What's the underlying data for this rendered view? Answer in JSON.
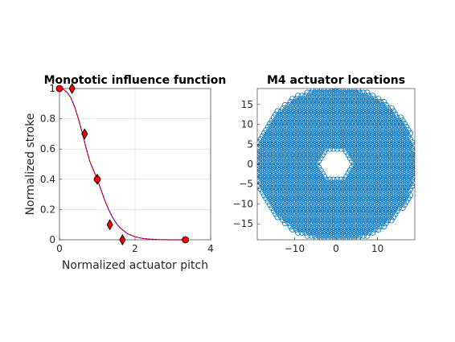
{
  "chart_data": [
    {
      "type": "line",
      "title": "Monototic influence function",
      "xlabel": "Normalized actuator pitch",
      "ylabel": "Normalized stroke",
      "xlim": [
        0,
        4
      ],
      "ylim": [
        0,
        1
      ],
      "xticks": [
        "0",
        "2",
        "4"
      ],
      "yticks": [
        "0",
        "0.2",
        "0.4",
        "0.6",
        "0.8",
        "1"
      ],
      "grid": true,
      "legend": "none",
      "series": [
        {
          "style": "red-diamond-markers-black-edge",
          "color": "#ff0000",
          "x": [
            0.333,
            0.667,
            1.0,
            1.333,
            1.667
          ],
          "y": [
            1.0,
            0.7,
            0.4,
            0.1,
            0.0
          ]
        },
        {
          "style": "red-circle-markers-black-edge",
          "color": "#ff0000",
          "x": [
            0.0,
            1.0,
            3.333
          ],
          "y": [
            1.0,
            0.4,
            0.0
          ]
        },
        {
          "style": "curve-red-with-blue-dashed",
          "color": "#ff0000",
          "overlay_color": "#0000ff",
          "x": [
            0.0,
            0.1,
            0.2,
            0.3,
            0.4,
            0.5,
            0.6,
            0.7,
            0.8,
            0.9,
            1.0,
            1.1,
            1.2,
            1.3,
            1.4,
            1.5,
            1.6,
            1.8,
            2.0,
            2.2,
            2.4,
            2.6,
            2.8,
            3.0,
            3.333
          ],
          "y": [
            1.0,
            0.995,
            0.975,
            0.94,
            0.88,
            0.8,
            0.71,
            0.61,
            0.52,
            0.46,
            0.4,
            0.33,
            0.26,
            0.2,
            0.15,
            0.11,
            0.08,
            0.04,
            0.02,
            0.009,
            0.004,
            0.0015,
            0.0005,
            0.0001,
            0.0
          ]
        }
      ]
    },
    {
      "type": "scatter",
      "title": "M4 actuator locations",
      "xlabel": "",
      "ylabel": "",
      "xlim": [
        -19,
        19
      ],
      "ylim": [
        -19,
        19
      ],
      "xticks": [
        "-10",
        "0",
        "10"
      ],
      "yticks": [
        "-15",
        "-10",
        "-5",
        "0",
        "5",
        "10",
        "15"
      ],
      "grid": false,
      "legend": "none",
      "marker": "circle",
      "color": "#0072bd",
      "description_ranges": {
        "outer_radius": 19.5,
        "inner_radius": 3.8,
        "inner_shape": "hexagon"
      }
    }
  ]
}
